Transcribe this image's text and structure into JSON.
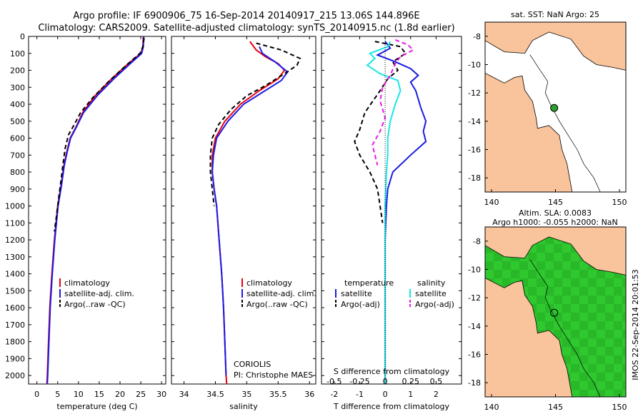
{
  "header": {
    "line1": "Argo profile: IF 6900906_75 16-Sep-2014 20140917_215 13.06S 144.896E",
    "line2": "Climatology: CARS2009. Satellite-adjusted climatology: synTS_20140915.nc (1.8d earlier)"
  },
  "colors": {
    "red": "#e8000b",
    "blue": "#1a1ae6",
    "black": "#000000",
    "cyan": "#19e6e6",
    "magenta": "#e619e6",
    "land": "#f9c39b",
    "sea": "#ffffff",
    "sla_field": "#36d436",
    "marker": "#2ca02c"
  },
  "chart_data": [
    {
      "id": "temperature",
      "type": "line",
      "xlabel": "temperature (deg C)",
      "xlim": [
        -2,
        31
      ],
      "xticks": [
        0,
        5,
        10,
        15,
        20,
        25,
        30
      ],
      "ylim": [
        0,
        2050
      ],
      "yticks": [
        0,
        100,
        200,
        300,
        400,
        500,
        600,
        700,
        800,
        900,
        1000,
        1100,
        1200,
        1300,
        1400,
        1500,
        1600,
        1700,
        1800,
        1900,
        2000
      ],
      "legend": [
        "climatology",
        "satellite-adj. clim.",
        "Argo(..raw -QC)"
      ],
      "series": [
        {
          "name": "climatology",
          "color": "red",
          "dash": "",
          "points": [
            [
              25.6,
              0
            ],
            [
              25.5,
              60
            ],
            [
              25,
              100
            ],
            [
              22,
              160
            ],
            [
              18,
              250
            ],
            [
              14,
              350
            ],
            [
              11,
              450
            ],
            [
              9.5,
              530
            ],
            [
              8,
              600
            ],
            [
              7.2,
              680
            ],
            [
              6.5,
              760
            ],
            [
              5.8,
              880
            ],
            [
              5,
              1000
            ],
            [
              4.2,
              1200
            ],
            [
              3.6,
              1400
            ],
            [
              3.1,
              1600
            ],
            [
              2.8,
              1800
            ],
            [
              2.5,
              2000
            ],
            [
              2.4,
              2050
            ]
          ]
        },
        {
          "name": "satellite-adj. clim.",
          "color": "blue",
          "dash": "",
          "points": [
            [
              25.7,
              0
            ],
            [
              25.6,
              60
            ],
            [
              25.2,
              100
            ],
            [
              22.5,
              160
            ],
            [
              18.5,
              250
            ],
            [
              14.5,
              350
            ],
            [
              11.2,
              450
            ],
            [
              9.6,
              530
            ],
            [
              8.1,
              600
            ],
            [
              7.3,
              680
            ],
            [
              6.6,
              760
            ],
            [
              5.9,
              880
            ],
            [
              5.1,
              1000
            ],
            [
              4.3,
              1200
            ],
            [
              3.7,
              1400
            ],
            [
              3.2,
              1600
            ],
            [
              2.9,
              1800
            ],
            [
              2.6,
              2000
            ],
            [
              2.5,
              2050
            ]
          ]
        },
        {
          "name": "Argo(..raw -QC)",
          "color": "black",
          "dash": "6,4",
          "points": [
            [
              25.8,
              10
            ],
            [
              25.5,
              60
            ],
            [
              24.8,
              100
            ],
            [
              21.5,
              170
            ],
            [
              17.5,
              260
            ],
            [
              13.5,
              360
            ],
            [
              10.5,
              450
            ],
            [
              9,
              520
            ],
            [
              7.6,
              580
            ],
            [
              6.8,
              660
            ],
            [
              6.3,
              750
            ],
            [
              5.8,
              850
            ],
            [
              5.2,
              960
            ],
            [
              4.6,
              1080
            ],
            [
              4.2,
              1150
            ]
          ]
        }
      ]
    },
    {
      "id": "salinity",
      "type": "line",
      "xlabel": "salinity",
      "xlim": [
        33.8,
        36.1
      ],
      "xticks": [
        34,
        34.5,
        35,
        35.5,
        36
      ],
      "ylim": [
        0,
        2050
      ],
      "legend": [
        "climatology",
        "satellite-adj. clim.",
        "Argo(..raw -QC)"
      ],
      "annotation": [
        "CORIOLIS",
        "PI: Christophe MAES"
      ],
      "series": [
        {
          "name": "climatology",
          "color": "red",
          "dash": "",
          "points": [
            [
              35.05,
              30
            ],
            [
              35.15,
              80
            ],
            [
              35.3,
              120
            ],
            [
              35.5,
              160
            ],
            [
              35.6,
              200
            ],
            [
              35.5,
              250
            ],
            [
              35.2,
              320
            ],
            [
              34.9,
              400
            ],
            [
              34.65,
              500
            ],
            [
              34.5,
              600
            ],
            [
              34.45,
              700
            ],
            [
              34.45,
              800
            ],
            [
              34.48,
              900
            ],
            [
              34.52,
              1000
            ],
            [
              34.56,
              1200
            ],
            [
              34.6,
              1400
            ],
            [
              34.63,
              1600
            ],
            [
              34.65,
              1800
            ],
            [
              34.67,
              2000
            ],
            [
              34.68,
              2050
            ]
          ]
        },
        {
          "name": "satellite-adj. clim.",
          "color": "blue",
          "dash": "",
          "points": [
            [
              35.2,
              60
            ],
            [
              35.25,
              100
            ],
            [
              35.45,
              150
            ],
            [
              35.65,
              210
            ],
            [
              35.55,
              260
            ],
            [
              35.25,
              330
            ],
            [
              34.95,
              400
            ],
            [
              34.7,
              500
            ],
            [
              34.52,
              600
            ],
            [
              34.47,
              700
            ],
            [
              34.45,
              800
            ],
            [
              34.48,
              900
            ],
            [
              34.52,
              1000
            ],
            [
              34.56,
              1200
            ],
            [
              34.6,
              1400
            ],
            [
              34.63,
              1600
            ],
            [
              34.65,
              1800
            ],
            [
              34.67,
              2000
            ]
          ]
        },
        {
          "name": "Argo(..raw -QC)",
          "color": "black",
          "dash": "6,4",
          "points": [
            [
              35.15,
              40
            ],
            [
              35.55,
              80
            ],
            [
              35.85,
              130
            ],
            [
              35.8,
              170
            ],
            [
              35.6,
              220
            ],
            [
              35.3,
              290
            ],
            [
              35.0,
              350
            ],
            [
              34.75,
              430
            ],
            [
              34.55,
              520
            ],
            [
              34.45,
              600
            ],
            [
              34.42,
              700
            ],
            [
              34.42,
              800
            ],
            [
              34.45,
              900
            ],
            [
              34.48,
              1000
            ]
          ]
        }
      ]
    },
    {
      "id": "difference",
      "type": "line",
      "xlabel": "T difference from climatology",
      "xlabel_top": "S difference from climatology",
      "xlim": [
        -2.5,
        3
      ],
      "xticks": [
        -2,
        -1,
        0,
        1,
        2
      ],
      "xticks_top": [
        "-0.5",
        "-0.25",
        "0",
        "0.25",
        "0.5"
      ],
      "xticks_top_pos": [
        -2,
        -1,
        0,
        1,
        2
      ],
      "ylim": [
        0,
        2050
      ],
      "legend_left": [
        "temperature",
        "satellite",
        "Argo(-adj)"
      ],
      "legend_right": [
        "salinity",
        "satellite",
        "Argo(-adj)"
      ],
      "series": [
        {
          "name": "T satellite",
          "color": "blue",
          "dash": "",
          "width": 2,
          "points": [
            [
              0,
              30
            ],
            [
              0.2,
              70
            ],
            [
              -0.3,
              110
            ],
            [
              0.4,
              150
            ],
            [
              1.0,
              190
            ],
            [
              1.3,
              230
            ],
            [
              1.0,
              270
            ],
            [
              1.2,
              320
            ],
            [
              1.4,
              420
            ],
            [
              1.6,
              500
            ],
            [
              1.5,
              560
            ],
            [
              1.6,
              620
            ],
            [
              1.0,
              700
            ],
            [
              0.3,
              800
            ],
            [
              0.1,
              900
            ],
            [
              0.05,
              1000
            ],
            [
              0,
              1200
            ],
            [
              0,
              2050
            ]
          ]
        },
        {
          "name": "T Argo(-adj)",
          "color": "black",
          "dash": "6,4",
          "width": 2,
          "points": [
            [
              -0.4,
              30
            ],
            [
              0.6,
              60
            ],
            [
              0.8,
              100
            ],
            [
              0.3,
              150
            ],
            [
              0.5,
              200
            ],
            [
              0.1,
              250
            ],
            [
              -0.2,
              320
            ],
            [
              -0.8,
              450
            ],
            [
              -1.0,
              550
            ],
            [
              -1.2,
              620
            ],
            [
              -1.0,
              700
            ],
            [
              -0.6,
              800
            ],
            [
              -0.3,
              900
            ],
            [
              -0.2,
              1000
            ],
            [
              -0.1,
              1100
            ]
          ]
        },
        {
          "name": "S satellite",
          "color": "cyan",
          "dash": "",
          "width": 2,
          "points": [
            [
              0.2,
              30
            ],
            [
              0.1,
              60
            ],
            [
              -0.6,
              100
            ],
            [
              -0.4,
              130
            ],
            [
              -0.7,
              170
            ],
            [
              -0.2,
              220
            ],
            [
              0.5,
              260
            ],
            [
              0.6,
              320
            ],
            [
              0.4,
              400
            ],
            [
              0.2,
              500
            ],
            [
              0.1,
              600
            ],
            [
              0.1,
              700
            ],
            [
              0.05,
              800
            ],
            [
              0,
              1000
            ],
            [
              0,
              2050
            ]
          ]
        },
        {
          "name": "S Argo(-adj)",
          "color": "magenta",
          "dash": "6,4",
          "width": 2,
          "points": [
            [
              0.4,
              20
            ],
            [
              0.9,
              50
            ],
            [
              1.1,
              80
            ],
            [
              0.6,
              120
            ],
            [
              0.4,
              160
            ],
            [
              0.2,
              230
            ],
            [
              -0.1,
              300
            ],
            [
              -0.2,
              380
            ],
            [
              0,
              480
            ],
            [
              -0.2,
              560
            ],
            [
              -0.5,
              640
            ],
            [
              -0.4,
              700
            ],
            [
              -0.3,
              760
            ]
          ]
        }
      ]
    },
    {
      "id": "map_sst",
      "type": "map",
      "title": "sat. SST: NaN Argo: 25",
      "xlim": [
        139.5,
        150.5
      ],
      "ylim": [
        -19,
        -7
      ],
      "xticks": [
        140,
        145,
        150
      ],
      "yticks": [
        -8,
        -10,
        -12,
        -14,
        -16,
        -18
      ],
      "float_position": [
        144.896,
        -13.06
      ]
    },
    {
      "id": "map_sla",
      "type": "map",
      "title_line1": "Altim. SLA: 0.0083",
      "title_line2": "Argo h1000: -0.055 h2000: NaN",
      "xlim": [
        139.5,
        150.5
      ],
      "ylim": [
        -19,
        -7
      ],
      "xticks": [
        140,
        145,
        150
      ],
      "yticks": [
        -8,
        -10,
        -12,
        -14,
        -16,
        -18
      ],
      "float_position": [
        144.896,
        -13.06
      ]
    }
  ],
  "footer_vertical": "IMOS 22-Sep-2014 20:01:53"
}
